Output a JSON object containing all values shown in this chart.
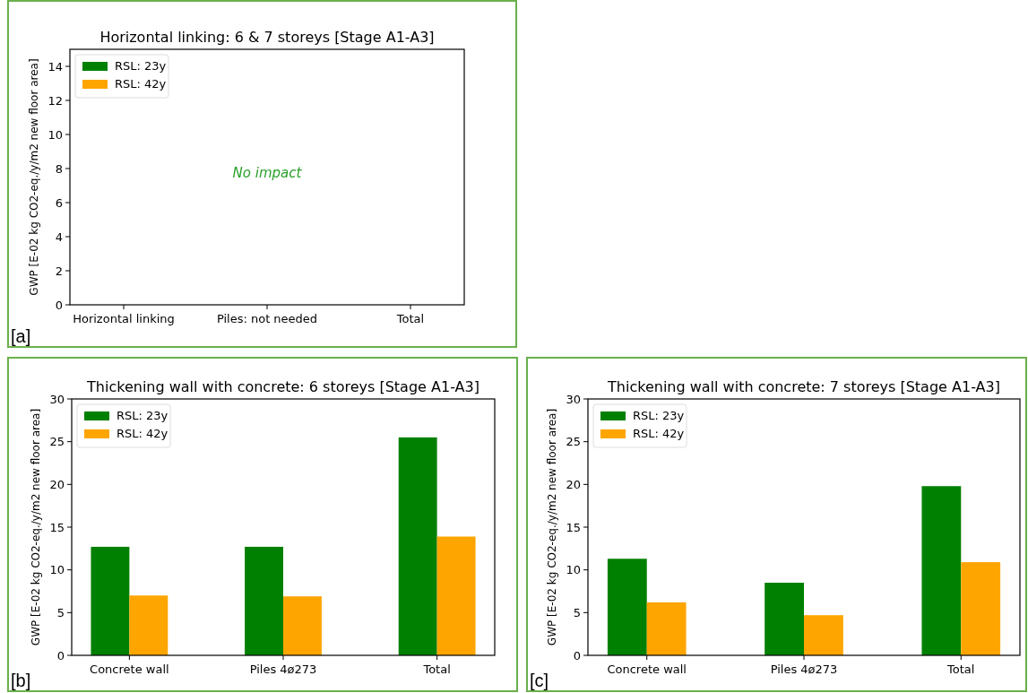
{
  "chart_data": [
    {
      "type": "bar",
      "title": "Horizontal linking: 6 & 7 storeys [Stage A1-A3]",
      "ylabel": "GWP [E-02 kg CO2-eq./y/m2 new floor area]",
      "categories": [
        "Horizontal linking",
        "Piles: not needed",
        "Total"
      ],
      "series": [
        {
          "name": "RSL: 23y",
          "color": "#008000",
          "values": [
            0,
            0,
            0
          ]
        },
        {
          "name": "RSL: 42y",
          "color": "#ffa500",
          "values": [
            0,
            0,
            0
          ]
        }
      ],
      "ylim": [
        0,
        15
      ],
      "yticks": [
        0,
        2,
        4,
        6,
        8,
        10,
        12,
        14
      ],
      "legend": "top left",
      "annotations": [
        "No impact",
        "[a]"
      ]
    },
    {
      "type": "bar",
      "title": "Thickening wall with concrete: 6 storeys [Stage A1-A3]",
      "ylabel": "GWP [E-02 kg CO2-eq./y/m2 new floor area]",
      "categories": [
        "Concrete wall",
        "Piles 4ø273",
        "Total"
      ],
      "series": [
        {
          "name": "RSL: 23y",
          "color": "#008000",
          "values": [
            12.7,
            12.7,
            25.5
          ]
        },
        {
          "name": "RSL: 42y",
          "color": "#ffa500",
          "values": [
            7.0,
            6.9,
            13.9
          ]
        }
      ],
      "ylim": [
        0,
        30
      ],
      "yticks": [
        0,
        5,
        10,
        15,
        20,
        25,
        30
      ],
      "legend": "top left",
      "annotations": [
        "[b]"
      ]
    },
    {
      "type": "bar",
      "title": "Thickening wall with concrete: 7 storeys [Stage A1-A3]",
      "ylabel": "GWP [E-02 kg CO2-eq./y/m2 new floor area]",
      "categories": [
        "Concrete wall",
        "Piles 4ø273",
        "Total"
      ],
      "series": [
        {
          "name": "RSL: 23y",
          "color": "#008000",
          "values": [
            11.3,
            8.5,
            19.8
          ]
        },
        {
          "name": "RSL: 42y",
          "color": "#ffa500",
          "values": [
            6.2,
            4.7,
            10.9
          ]
        }
      ],
      "ylim": [
        0,
        30
      ],
      "yticks": [
        0,
        5,
        10,
        15,
        20,
        25,
        30
      ],
      "legend": "top left",
      "annotations": [
        "[c]"
      ]
    }
  ]
}
